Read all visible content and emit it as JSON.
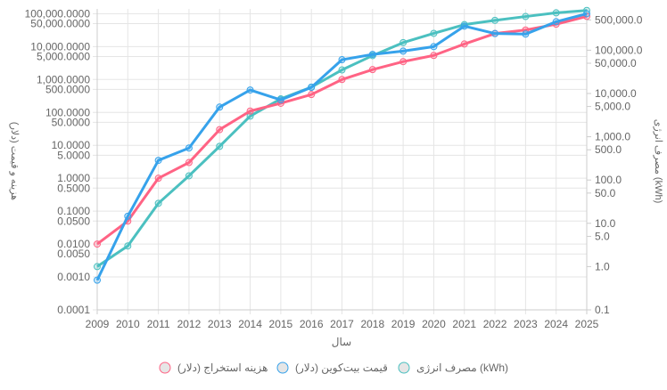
{
  "chart_data": {
    "type": "line",
    "x": [
      2009,
      2010,
      2011,
      2012,
      2013,
      2014,
      2015,
      2016,
      2017,
      2018,
      2019,
      2020,
      2021,
      2022,
      2023,
      2024,
      2025
    ],
    "xlabel": "سال",
    "ylabel": "هزینه و قیمت (دلار)",
    "y2label": "مصرف انرژی (kWh)",
    "yscale": "log",
    "y2scale": "log",
    "ylim": [
      0.0001,
      140000
    ],
    "y2lim": [
      0.1,
      900000
    ],
    "yticks": [
      "100,000.0000",
      "50,000.0000",
      "10,000.0000",
      "5,000.0000",
      "1,000.0000",
      "500.0000",
      "100.0000",
      "50.0000",
      "10.0000",
      "5.0000",
      "1.0000",
      "0.5000",
      "0.1000",
      "0.0500",
      "0.0100",
      "0.0050",
      "0.0010",
      "0.0001"
    ],
    "y2ticks": [
      "500,000.0",
      "100,000.0",
      "50,000.0",
      "10,000.0",
      "5,000.0",
      "1,000.0",
      "500.0",
      "100.0",
      "50.0",
      "10.0",
      "5.0",
      "1.0",
      "0.1"
    ],
    "grid": true,
    "legend": "bottom",
    "series": [
      {
        "name": "هزینه استخراج (دلار)",
        "axis": "left",
        "color": "#ff6384",
        "values": [
          0.01,
          0.05,
          1,
          3,
          30,
          110,
          190,
          350,
          1000,
          2000,
          3500,
          5400,
          12000,
          25000,
          32000,
          48000,
          83000
        ]
      },
      {
        "name": "قیمت بیت‌کوین (دلار)",
        "axis": "left",
        "color": "#36a2eb",
        "values": [
          0.0008,
          0.07,
          3.5,
          8.3,
          145,
          480,
          240,
          580,
          4000,
          5800,
          7300,
          10000,
          42000,
          25000,
          24000,
          57000,
          100000
        ]
      },
      {
        "name": "مصرف انرژی (kWh)",
        "axis": "right",
        "color": "#4bc0c0",
        "values": [
          1,
          3,
          29,
          125,
          600,
          3000,
          7500,
          14000,
          35000,
          75000,
          150000,
          245000,
          390000,
          490000,
          600000,
          730000,
          830000
        ]
      }
    ]
  }
}
